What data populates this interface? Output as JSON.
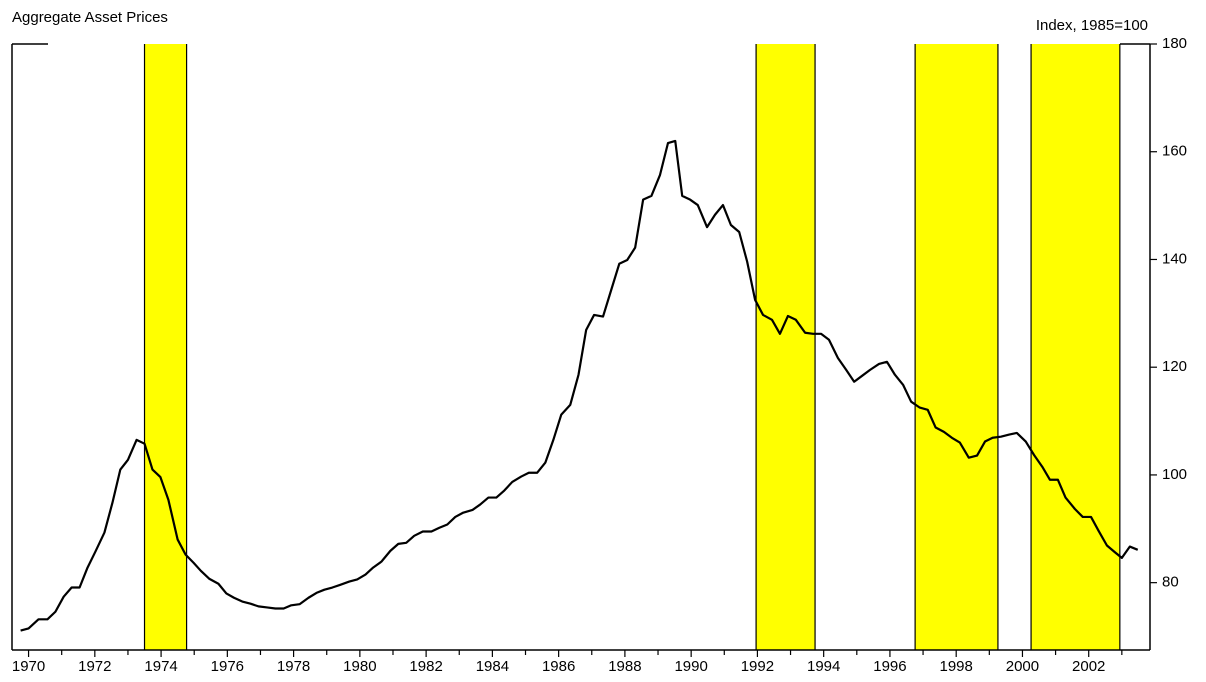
{
  "chart_data": {
    "type": "line",
    "title": "Aggregate Asset Prices",
    "y_axis_label": "Index, 1985=100",
    "y_axis_side": "right",
    "xlim": [
      1969.5,
      2003.85
    ],
    "xticks": [
      1970,
      1972,
      1974,
      1976,
      1978,
      1980,
      1982,
      1984,
      1986,
      1988,
      1990,
      1992,
      1994,
      1996,
      1998,
      2000,
      2002
    ],
    "xticks_minor": [
      1971,
      1973,
      1975,
      1977,
      1979,
      1981,
      1983,
      1985,
      1987,
      1989,
      1991,
      1993,
      1995,
      1997,
      1999,
      2001,
      2003
    ],
    "ylim": [
      67.5,
      180
    ],
    "yticks": [
      80,
      100,
      120,
      140,
      160,
      180
    ],
    "shaded_color": "#ffff00",
    "shaded_periods": [
      [
        1973.5,
        1974.77
      ],
      [
        1991.96,
        1993.74
      ],
      [
        1996.76,
        1999.26
      ],
      [
        2000.26,
        2002.94
      ]
    ],
    "series": [
      {
        "color": "#000000",
        "x": [
          1969.76,
          1970.0,
          1970.3,
          1970.57,
          1970.81,
          1971.06,
          1971.3,
          1971.54,
          1971.78,
          1972.02,
          1972.29,
          1972.53,
          1972.77,
          1973.0,
          1973.26,
          1973.5,
          1973.74,
          1973.98,
          1974.22,
          1974.5,
          1974.74,
          1974.98,
          1975.2,
          1975.46,
          1975.73,
          1975.97,
          1976.2,
          1976.45,
          1976.7,
          1976.94,
          1977.2,
          1977.45,
          1977.7,
          1977.93,
          1978.18,
          1978.45,
          1978.69,
          1978.93,
          1979.17,
          1979.41,
          1979.68,
          1979.92,
          1980.17,
          1980.4,
          1980.65,
          1980.92,
          1981.16,
          1981.4,
          1981.64,
          1981.9,
          1982.16,
          1982.4,
          1982.64,
          1982.88,
          1983.12,
          1983.4,
          1983.63,
          1983.88,
          1984.12,
          1984.36,
          1984.6,
          1984.87,
          1985.1,
          1985.35,
          1985.6,
          1985.84,
          1986.08,
          1986.35,
          1986.6,
          1986.83,
          1987.07,
          1987.34,
          1987.59,
          1987.83,
          1988.07,
          1988.31,
          1988.55,
          1988.8,
          1989.06,
          1989.3,
          1989.52,
          1989.73,
          1989.97,
          1990.2,
          1990.48,
          1990.72,
          1990.96,
          1991.2,
          1991.45,
          1991.69,
          1991.93,
          1992.17,
          1992.44,
          1992.68,
          1992.92,
          1993.16,
          1993.44,
          1993.68,
          1993.92,
          1994.16,
          1994.43,
          1994.68,
          1994.92,
          1995.16,
          1995.4,
          1995.67,
          1995.91,
          1996.15,
          1996.4,
          1996.64,
          1996.9,
          1997.14,
          1997.38,
          1997.63,
          1997.87,
          1998.11,
          1998.38,
          1998.63,
          1998.87,
          1999.1,
          1999.35,
          1999.6,
          1999.83,
          2000.1,
          2000.35,
          2000.6,
          2000.83,
          2001.07,
          2001.3,
          2001.58,
          2001.82,
          2002.07,
          2002.3,
          2002.55,
          2002.8,
          2003.0,
          2003.24,
          2003.48
        ],
        "values": [
          71.1,
          71.5,
          73.2,
          73.2,
          74.6,
          77.4,
          79.1,
          79.1,
          82.8,
          85.8,
          89.3,
          94.8,
          101,
          102.8,
          106.5,
          105.8,
          101,
          99.6,
          95.4,
          88,
          85.2,
          83.7,
          82.2,
          80.7,
          79.8,
          78,
          77.2,
          76.5,
          76.1,
          75.6,
          75.4,
          75.2,
          75.2,
          75.8,
          76,
          77.2,
          78.1,
          78.7,
          79.1,
          79.6,
          80.2,
          80.6,
          81.5,
          82.8,
          83.9,
          85.9,
          87.2,
          87.4,
          88.7,
          89.5,
          89.5,
          90.2,
          90.8,
          92.2,
          93,
          93.5,
          94.5,
          95.8,
          95.8,
          97.1,
          98.7,
          99.7,
          100.4,
          100.4,
          102.3,
          106.5,
          111.2,
          113,
          118.6,
          126.9,
          129.7,
          129.4,
          134.4,
          139.2,
          139.9,
          142.2,
          151.1,
          151.8,
          155.7,
          161.6,
          162,
          151.8,
          151.1,
          150.1,
          146,
          148.3,
          150.1,
          146.4,
          145.1,
          139.6,
          132.5,
          129.7,
          128.8,
          126.2,
          129.5,
          128.8,
          126.4,
          126.2,
          126.2,
          125.1,
          121.7,
          119.5,
          117.3,
          118.4,
          119.5,
          120.6,
          121,
          118.6,
          116.7,
          113.6,
          112.5,
          112.1,
          108.8,
          108,
          106.9,
          106,
          103.2,
          103.6,
          106.2,
          106.9,
          107.1,
          107.5,
          107.8,
          106.2,
          103.7,
          101.5,
          99.1,
          99.1,
          95.8,
          93.7,
          92.2,
          92.2,
          89.6,
          86.9,
          85.6,
          84.6,
          86.7,
          86.1
        ]
      }
    ]
  }
}
